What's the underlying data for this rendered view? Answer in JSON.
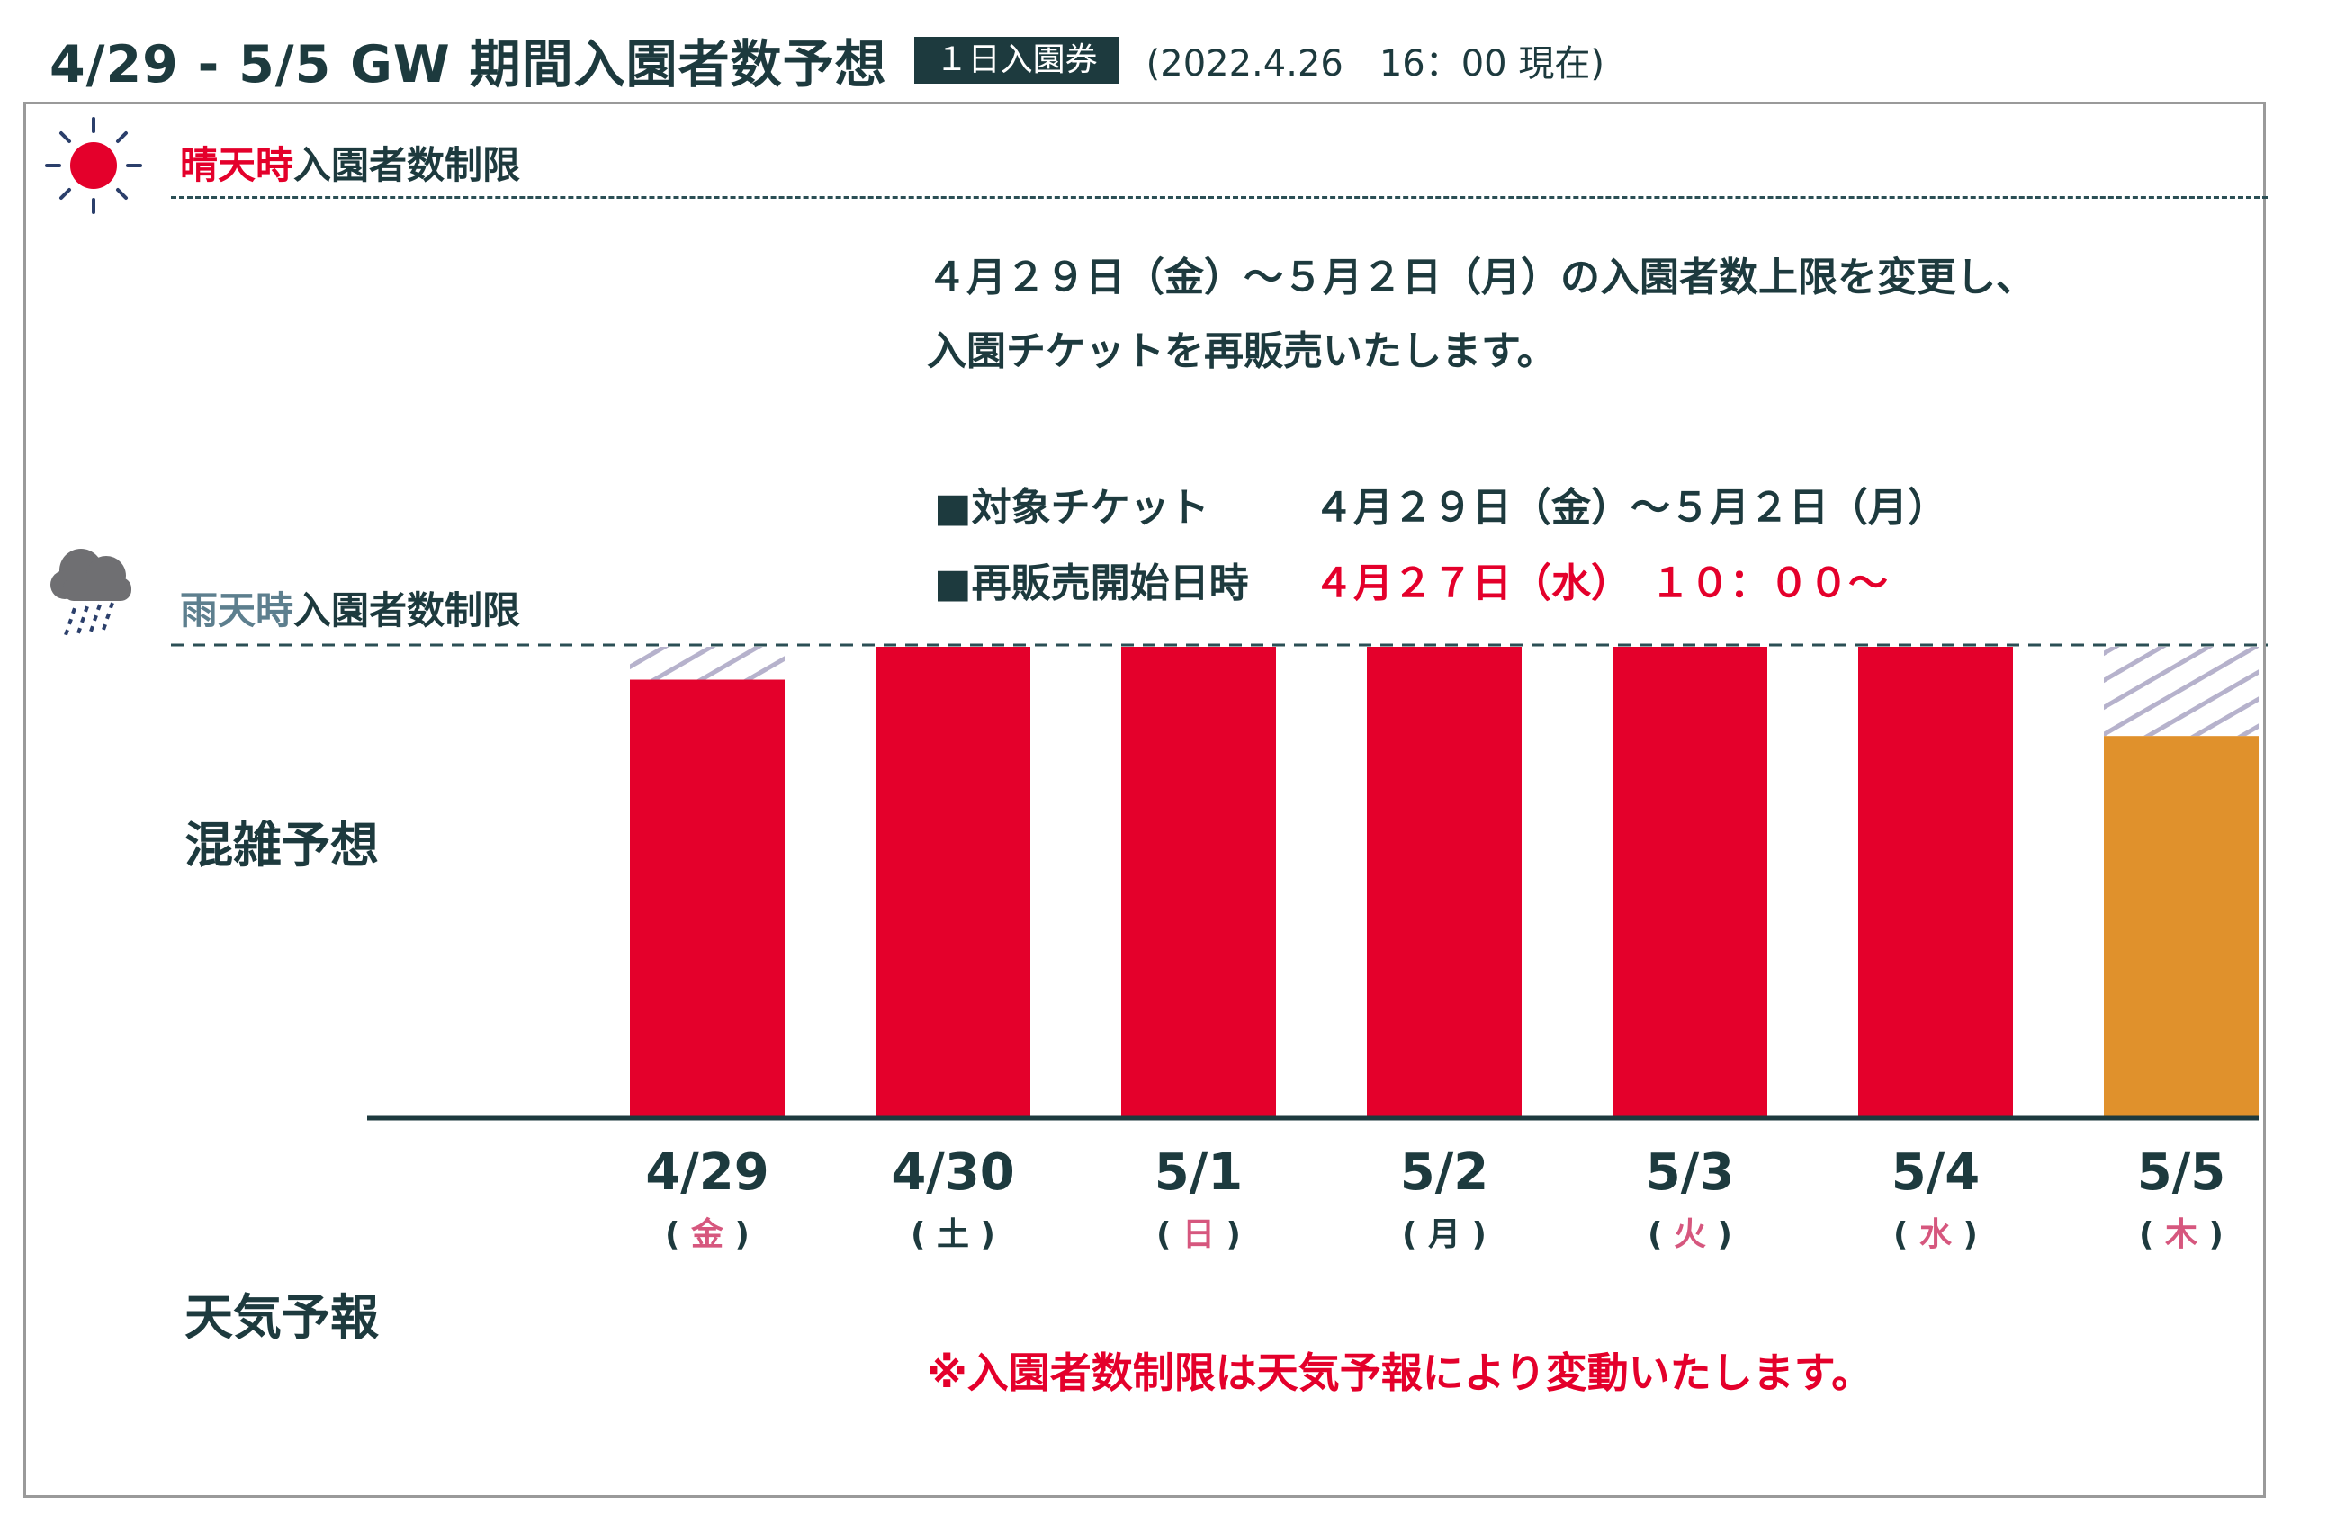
{
  "header": {
    "title": "4/29 - 5/5 GW 期間入園者数予想",
    "badge": "１日入園券",
    "as_of": "(2022.4.26　16：00 現在)"
  },
  "limits": {
    "sunny": {
      "accent": "晴天時",
      "rest": "入園者数制限",
      "icon": "sun-icon",
      "color": "#e4002b"
    },
    "rainy": {
      "accent": "雨天時",
      "rest": "入園者数制限",
      "icon": "rain-cloud-icon",
      "color": "#5d7f8e"
    }
  },
  "notice": {
    "line1": "４月２９日（金）～５月２日（月）の入園者数上限を変更し、",
    "line2": "入園チケットを再販売いたします。",
    "rows": [
      {
        "label": "■対象チケット",
        "value": "４月２９日（金）～５月２日（月）",
        "highlight": false
      },
      {
        "label": "■再販売開始日時",
        "value": "４月２７日（水）　１０：００～",
        "highlight": true
      }
    ]
  },
  "side_labels": {
    "congestion": "混雑予想",
    "weather": "天気予報"
  },
  "caution": "※入園者数制限は天気予報により変動いたします。",
  "colors": {
    "red": "#e4002b",
    "orange": "#e0912c",
    "dark": "#1d3a3e",
    "weekday_pink": "#d6577e",
    "hatch": "#b6b2cc"
  },
  "chart_data": {
    "type": "bar",
    "unit": "fraction of rainy-day admission limit",
    "categories": [
      "4/29",
      "4/30",
      "5/1",
      "5/2",
      "5/3",
      "5/4",
      "5/5"
    ],
    "weekdays": [
      "金",
      "土",
      "日",
      "月",
      "火",
      "水",
      "木"
    ],
    "weekday_highlight": [
      true,
      false,
      true,
      false,
      true,
      true,
      true
    ],
    "values": [
      0.93,
      1.0,
      1.0,
      1.0,
      1.0,
      1.0,
      0.81
    ],
    "bar_colors": [
      "#e4002b",
      "#e4002b",
      "#e4002b",
      "#e4002b",
      "#e4002b",
      "#e4002b",
      "#e0912c"
    ],
    "ylim": [
      0,
      1
    ]
  }
}
